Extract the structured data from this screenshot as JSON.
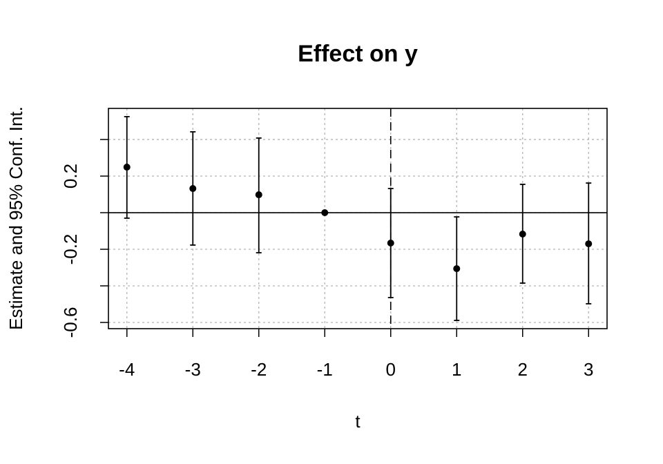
{
  "chart_data": {
    "type": "errorbar",
    "title": "Effect on y",
    "xlabel": "t",
    "ylabel": "Estimate and 95% Conf. Int.",
    "x": [
      -4,
      -3,
      -2,
      -1,
      0,
      1,
      2,
      3
    ],
    "values": [
      0.249,
      0.132,
      0.098,
      0,
      -0.166,
      -0.306,
      -0.117,
      -0.17
    ],
    "ci_low": [
      -0.03,
      -0.177,
      -0.219,
      null,
      -0.464,
      -0.589,
      -0.385,
      -0.498
    ],
    "ci_high": [
      0.525,
      0.442,
      0.408,
      null,
      0.132,
      -0.023,
      0.155,
      0.162
    ],
    "color": "#000000",
    "xlim": [
      -4.28,
      3.28
    ],
    "xticks": [
      -4,
      -3,
      -2,
      -1,
      0,
      1,
      2,
      3
    ],
    "ylim": [
      -0.634,
      0.57
    ],
    "yticks": [
      -0.6,
      -0.2,
      0.2
    ],
    "yticks_unlabeled": [
      -0.4,
      0,
      0.4
    ],
    "hline": 0,
    "vline": 0,
    "grid": true
  }
}
